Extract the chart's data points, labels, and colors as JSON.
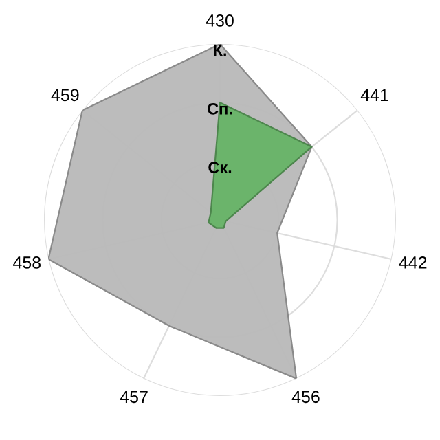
{
  "chart_data": {
    "type": "radar",
    "categories": [
      "430",
      "441",
      "442",
      "456",
      "457",
      "458",
      "459"
    ],
    "ylim": [
      0,
      3
    ],
    "yticks": [
      {
        "value": 1,
        "label": "Ск."
      },
      {
        "value": 2,
        "label": "Сп."
      },
      {
        "value": 3,
        "label": "К."
      }
    ],
    "grid": true,
    "series": [
      {
        "color": "#b8b8b8",
        "values": [
          3,
          2,
          1,
          3,
          2,
          3,
          3
        ]
      },
      {
        "color": "#66b366",
        "values": [
          2,
          2,
          0.1,
          0.15,
          0.15,
          0.2,
          0.2
        ]
      }
    ]
  }
}
